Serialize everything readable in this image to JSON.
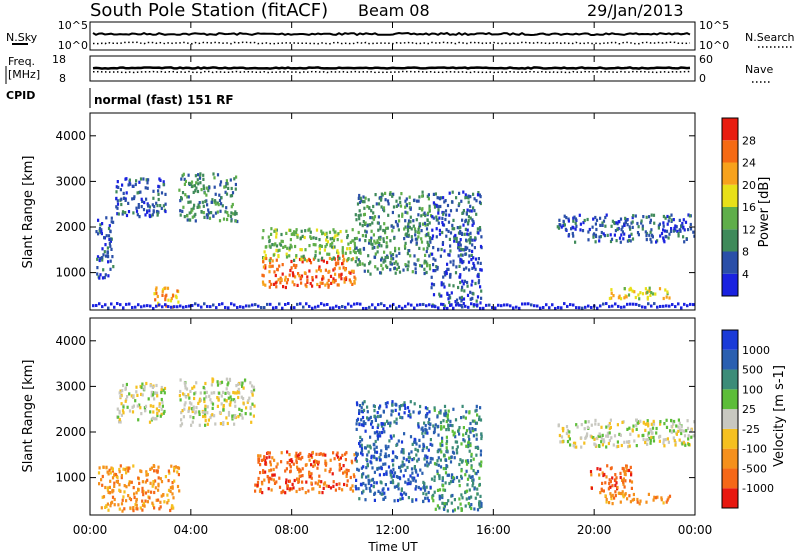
{
  "header": {
    "station": "South Pole Station (fitACF)",
    "beam": "Beam 08",
    "date": "29/Jan/2013"
  },
  "left_labels": {
    "nsky": "N.Sky",
    "freq_line1": "Freq.",
    "freq_line2": "[MHz]",
    "cpid": "CPID"
  },
  "right_labels": {
    "nsearch": "N.Search",
    "nave": "Nave"
  },
  "cpid_text": "normal (fast) 151 RF",
  "chart_data": [
    {
      "type": "line",
      "panel": "noise",
      "yticks_left": [
        "10^5",
        "10^0"
      ],
      "yticks_right": [
        "10^5",
        "10^0"
      ],
      "series": [
        {
          "name": "N.Sky",
          "style": "solid"
        },
        {
          "name": "N.Search",
          "style": "dotted"
        }
      ]
    },
    {
      "type": "line",
      "panel": "frequency",
      "yticks_left": [
        "18",
        "8"
      ],
      "yticks_right": [
        "60",
        "0"
      ],
      "series": [
        {
          "name": "Freq.",
          "style": "solid"
        },
        {
          "name": "Nave",
          "style": "dotted"
        }
      ]
    },
    {
      "type": "heatmap",
      "panel": "power",
      "ylabel": "Slant Range [km]",
      "yticks": [
        "1000",
        "2000",
        "3000",
        "4000"
      ],
      "ylim": [
        180,
        4500
      ],
      "colorbar_label": "Power [dB]",
      "colorbar_ticks": [
        "4",
        "8",
        "12",
        "16",
        "20",
        "24",
        "28"
      ],
      "colors": [
        "#1a22e0",
        "#2a4fa8",
        "#3f8a5a",
        "#5fae4a",
        "#e8e018",
        "#f7a21c",
        "#f56a14",
        "#e81c10"
      ],
      "blobs": [
        {
          "t": [
            1.0,
            3.0
          ],
          "r": [
            2250,
            3100
          ],
          "level": 1
        },
        {
          "t": [
            3.5,
            5.8
          ],
          "r": [
            2150,
            3200
          ],
          "level": 2
        },
        {
          "t": [
            6.8,
            10.5
          ],
          "r": [
            700,
            1400
          ],
          "level": 6
        },
        {
          "t": [
            6.8,
            10.5
          ],
          "r": [
            1300,
            2000
          ],
          "level": 3
        },
        {
          "t": [
            10.5,
            13.5
          ],
          "r": [
            1000,
            2800
          ],
          "level": 2
        },
        {
          "t": [
            13.5,
            15.5
          ],
          "r": [
            300,
            2800
          ],
          "level": 1
        },
        {
          "t": [
            18.5,
            24.0
          ],
          "r": [
            1700,
            2300
          ],
          "level": 1
        },
        {
          "t": [
            20.3,
            23.0
          ],
          "r": [
            450,
            700
          ],
          "level": 4
        },
        {
          "t": [
            0.2,
            0.9
          ],
          "r": [
            900,
            2300
          ],
          "level": 1
        },
        {
          "t": [
            2.5,
            3.5
          ],
          "r": [
            250,
            700
          ],
          "level": 5
        }
      ]
    },
    {
      "type": "heatmap",
      "panel": "velocity",
      "ylabel": "Slant Range [km]",
      "yticks": [
        "1000",
        "2000",
        "3000",
        "4000"
      ],
      "ylim": [
        180,
        4500
      ],
      "xlabel": "Time UT",
      "xticks": [
        "00:00",
        "04:00",
        "08:00",
        "12:00",
        "16:00",
        "20:00",
        "00:00"
      ],
      "xlim": [
        0,
        24
      ],
      "colorbar_label": "Velocity [m s-1]",
      "colorbar_ticks": [
        "1000",
        "500",
        "100",
        "25",
        "-25",
        "-100",
        "-500",
        "-1000"
      ],
      "colors": [
        "#1a3ad8",
        "#2a5fb0",
        "#3c8c78",
        "#5cbd38",
        "#c8c8c0",
        "#f5c020",
        "#f5901c",
        "#f56818",
        "#e81810"
      ],
      "blobs": [
        {
          "t": [
            1.0,
            3.0
          ],
          "r": [
            2250,
            3100
          ],
          "level": 4
        },
        {
          "t": [
            3.5,
            6.5
          ],
          "r": [
            2150,
            3200
          ],
          "level": 4
        },
        {
          "t": [
            6.5,
            10.5
          ],
          "r": [
            700,
            1600
          ],
          "level": 7
        },
        {
          "t": [
            10.5,
            13.5
          ],
          "r": [
            500,
            2700
          ],
          "level": 1
        },
        {
          "t": [
            13.5,
            15.5
          ],
          "r": [
            300,
            2600
          ],
          "level": 2
        },
        {
          "t": [
            18.5,
            24.0
          ],
          "r": [
            1700,
            2300
          ],
          "level": 4
        },
        {
          "t": [
            20.3,
            23.0
          ],
          "r": [
            450,
            700
          ],
          "level": 6
        },
        {
          "t": [
            19.8,
            21.5
          ],
          "r": [
            700,
            1300
          ],
          "level": 7
        },
        {
          "t": [
            0.3,
            3.5
          ],
          "r": [
            300,
            1300
          ],
          "level": 6
        }
      ]
    }
  ]
}
